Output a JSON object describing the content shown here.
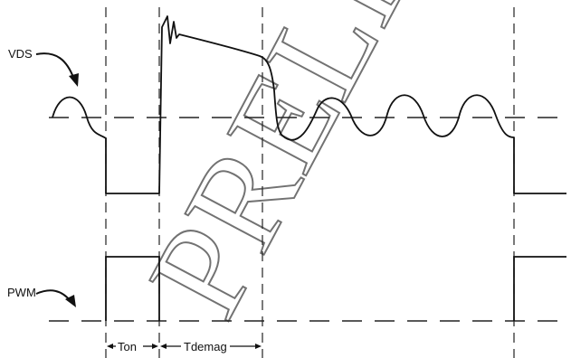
{
  "diagram": {
    "signals": [
      {
        "id": "vds",
        "label": "VDS"
      },
      {
        "id": "pwm",
        "label": "PWM"
      }
    ],
    "intervals": [
      {
        "id": "ton",
        "label": "Ton"
      },
      {
        "id": "tdemag",
        "label": "Tdemag"
      }
    ],
    "watermark": "PRELIMINARY"
  },
  "colors": {
    "ink": "#111111",
    "background": "#ffffff"
  }
}
